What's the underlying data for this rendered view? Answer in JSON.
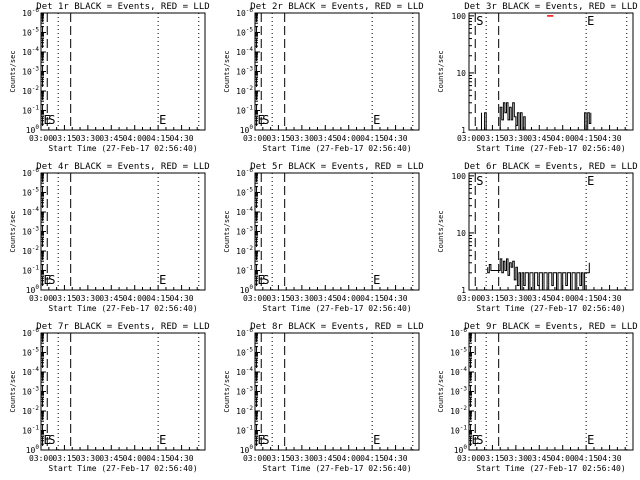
{
  "colors": {
    "events": "#000000",
    "lld": "#ff0000",
    "background": "#ffffff"
  },
  "chart_data": [
    {
      "type": "line",
      "title": "Det 1r BLACK = Events, RED = LLD",
      "xlabel": "Start Time (27-Feb-17 02:56:40)",
      "ylabel": "Counts/sec",
      "xticks": [
        "03:00",
        "03:15",
        "03:30",
        "03:45",
        "04:00",
        "04:15",
        "04:30"
      ],
      "yticks": [
        "10^0",
        "10^-1",
        "10^-2",
        "10^-3",
        "10^-4",
        "10^-5",
        "10^-6"
      ],
      "markers": [
        {
          "label": "E",
          "time": "03:01",
          "style": "dashed"
        },
        {
          "label": "S",
          "time": "03:04",
          "style": "dashed"
        },
        {
          "time": "03:11",
          "style": "dotted"
        },
        {
          "time": "03:19",
          "style": "dashed"
        },
        {
          "label": "E",
          "time": "04:15",
          "style": "dotted"
        },
        {
          "time": "04:41",
          "style": "dotted"
        }
      ],
      "series": []
    },
    {
      "type": "line",
      "title": "Det 2r BLACK = Events, RED = LLD",
      "xlabel": "Start Time (27-Feb-17 02:56:40)",
      "ylabel": "Counts/sec",
      "xticks": [
        "03:00",
        "03:15",
        "03:30",
        "03:45",
        "04:00",
        "04:15",
        "04:30"
      ],
      "yticks": [
        "10^0",
        "10^-1",
        "10^-2",
        "10^-3",
        "10^-4",
        "10^-5",
        "10^-6"
      ],
      "markers": [
        {
          "label": "E",
          "time": "03:01",
          "style": "dashed"
        },
        {
          "label": "S",
          "time": "03:04",
          "style": "dashed"
        },
        {
          "time": "03:11",
          "style": "dotted"
        },
        {
          "time": "03:19",
          "style": "dashed"
        },
        {
          "label": "E",
          "time": "04:15",
          "style": "dotted"
        },
        {
          "time": "04:41",
          "style": "dotted"
        }
      ],
      "series": []
    },
    {
      "type": "line",
      "title": "Det 3r BLACK = Events, RED = LLD",
      "xlabel": "Start Time (27-Feb-17 02:56:40)",
      "ylabel": "Counts/sec",
      "xticks": [
        "03:00",
        "03:15",
        "03:30",
        "03:45",
        "04:00",
        "04:15",
        "04:30"
      ],
      "yticks": [
        "1",
        "10",
        "100"
      ],
      "markers": [
        {
          "label": "S",
          "time": "03:04",
          "style": "dashed"
        },
        {
          "time": "03:11",
          "style": "dotted"
        },
        {
          "time": "03:19",
          "style": "dashed"
        },
        {
          "label": "E",
          "time": "04:15",
          "style": "dotted"
        },
        {
          "time": "04:41",
          "style": "dotted"
        }
      ],
      "series": [
        {
          "color": "black",
          "points": [
            [
              "03:08",
              2
            ],
            [
              "03:08",
              1
            ],
            [
              "03:10",
              1
            ],
            [
              "03:10",
              2
            ],
            [
              "03:11",
              2
            ],
            [
              "03:11",
              1
            ],
            [
              "03:20",
              1
            ],
            [
              "03:20",
              2.5
            ],
            [
              "03:21",
              2.5
            ],
            [
              "03:21",
              1.5
            ],
            [
              "03:22",
              1.5
            ],
            [
              "03:22",
              3
            ],
            [
              "03:23",
              3
            ],
            [
              "03:23",
              2
            ],
            [
              "03:24",
              2
            ],
            [
              "03:24",
              3
            ],
            [
              "03:25",
              3
            ],
            [
              "03:25",
              1.5
            ],
            [
              "03:26",
              1.5
            ],
            [
              "03:26",
              2.5
            ],
            [
              "03:27",
              2.5
            ],
            [
              "03:27",
              1.5
            ],
            [
              "03:28",
              1.5
            ],
            [
              "03:28",
              3
            ],
            [
              "03:29",
              3
            ],
            [
              "03:29",
              1.7
            ],
            [
              "03:30",
              1.7
            ],
            [
              "03:30",
              1.2
            ],
            [
              "03:31",
              1.2
            ],
            [
              "03:31",
              2
            ],
            [
              "03:32",
              2
            ],
            [
              "03:32",
              1
            ],
            [
              "03:33",
              1
            ],
            [
              "03:33",
              2
            ],
            [
              "03:34",
              2
            ],
            [
              "03:34",
              1
            ],
            [
              "03:35",
              1
            ],
            [
              "03:35",
              1.7
            ],
            [
              "03:36",
              1.7
            ],
            [
              "03:36",
              1
            ],
            [
              "04:14",
              1
            ],
            [
              "04:14",
              2
            ],
            [
              "04:15",
              2
            ],
            [
              "04:15",
              1
            ],
            [
              "04:16",
              1
            ],
            [
              "04:16",
              2
            ],
            [
              "04:17",
              2
            ],
            [
              "04:17",
              1.3
            ],
            [
              "04:18",
              1.3
            ],
            [
              "04:18",
              2
            ]
          ]
        },
        {
          "color": "red",
          "points": [
            [
              "03:50",
              100
            ],
            [
              "03:54",
              100
            ]
          ]
        }
      ]
    },
    {
      "type": "line",
      "title": "Det 4r BLACK = Events, RED = LLD",
      "xlabel": "Start Time (27-Feb-17 02:56:40)",
      "ylabel": "Counts/sec",
      "xticks": [
        "03:00",
        "03:15",
        "03:30",
        "03:45",
        "04:00",
        "04:15",
        "04:30"
      ],
      "yticks": [
        "10^0",
        "10^-1",
        "10^-2",
        "10^-3",
        "10^-4",
        "10^-5",
        "10^-6"
      ],
      "markers": [
        {
          "label": "E",
          "time": "03:01",
          "style": "dashed"
        },
        {
          "label": "S",
          "time": "03:04",
          "style": "dashed"
        },
        {
          "time": "03:11",
          "style": "dotted"
        },
        {
          "time": "03:19",
          "style": "dashed"
        },
        {
          "label": "E",
          "time": "04:15",
          "style": "dotted"
        },
        {
          "time": "04:41",
          "style": "dotted"
        }
      ],
      "series": []
    },
    {
      "type": "line",
      "title": "Det 5r BLACK = Events, RED = LLD",
      "xlabel": "Start Time (27-Feb-17 02:56:40)",
      "ylabel": "Counts/sec",
      "xticks": [
        "03:00",
        "03:15",
        "03:30",
        "03:45",
        "04:00",
        "04:15",
        "04:30"
      ],
      "yticks": [
        "10^0",
        "10^-1",
        "10^-2",
        "10^-3",
        "10^-4",
        "10^-5",
        "10^-6"
      ],
      "markers": [
        {
          "label": "E",
          "time": "03:01",
          "style": "dashed"
        },
        {
          "label": "S",
          "time": "03:04",
          "style": "dashed"
        },
        {
          "time": "03:11",
          "style": "dotted"
        },
        {
          "time": "03:19",
          "style": "dashed"
        },
        {
          "label": "E",
          "time": "04:15",
          "style": "dotted"
        },
        {
          "time": "04:41",
          "style": "dotted"
        }
      ],
      "series": []
    },
    {
      "type": "line",
      "title": "Det 6r BLACK = Events, RED = LLD",
      "xlabel": "Start Time (27-Feb-17 02:56:40)",
      "ylabel": "Counts/sec",
      "xticks": [
        "03:00",
        "03:15",
        "03:30",
        "03:45",
        "04:00",
        "04:15",
        "04:30"
      ],
      "yticks": [
        "1",
        "10",
        "100"
      ],
      "markers": [
        {
          "label": "S",
          "time": "03:04",
          "style": "dashed"
        },
        {
          "time": "03:11",
          "style": "dotted"
        },
        {
          "time": "03:19",
          "style": "dashed"
        },
        {
          "label": "E",
          "time": "04:15",
          "style": "dotted"
        },
        {
          "time": "04:41",
          "style": "dotted"
        }
      ],
      "series": [
        {
          "color": "black",
          "points": [
            [
              "03:12",
              2.5
            ],
            [
              "03:12",
              2
            ],
            [
              "03:13",
              2
            ],
            [
              "03:13",
              2.8
            ],
            [
              "03:14",
              2.8
            ],
            [
              "03:14",
              2.2
            ],
            [
              "03:20",
              2.2
            ],
            [
              "03:20",
              3.5
            ],
            [
              "03:21",
              3.5
            ],
            [
              "03:21",
              2
            ],
            [
              "03:22",
              2
            ],
            [
              "03:22",
              3.2
            ],
            [
              "03:23",
              3.2
            ],
            [
              "03:23",
              2.2
            ],
            [
              "03:24",
              2.2
            ],
            [
              "03:24",
              3.5
            ],
            [
              "03:25",
              3.5
            ],
            [
              "03:25",
              1.8
            ],
            [
              "03:26",
              1.8
            ],
            [
              "03:26",
              3
            ],
            [
              "03:27",
              3
            ],
            [
              "03:27",
              2.5
            ],
            [
              "03:28",
              2.5
            ],
            [
              "03:28",
              3.2
            ],
            [
              "03:29",
              3.2
            ],
            [
              "03:29",
              1.5
            ],
            [
              "03:30",
              1.5
            ],
            [
              "03:30",
              2.5
            ],
            [
              "03:31",
              2.5
            ],
            [
              "03:31",
              1.2
            ],
            [
              "03:32",
              1.2
            ],
            [
              "03:32",
              2
            ],
            [
              "03:33",
              2
            ],
            [
              "03:33",
              1
            ],
            [
              "03:34",
              1
            ],
            [
              "03:34",
              2
            ],
            [
              "03:35",
              2
            ],
            [
              "03:35",
              1.2
            ],
            [
              "03:36",
              1.2
            ],
            [
              "03:36",
              2
            ],
            [
              "03:38",
              2
            ],
            [
              "03:38",
              1
            ],
            [
              "03:39",
              1
            ],
            [
              "03:39",
              2
            ],
            [
              "03:41",
              2
            ],
            [
              "03:41",
              1
            ],
            [
              "03:42",
              1
            ],
            [
              "03:42",
              2
            ],
            [
              "03:44",
              2
            ],
            [
              "03:44",
              1.2
            ],
            [
              "03:45",
              1.2
            ],
            [
              "03:45",
              2
            ],
            [
              "03:47",
              2
            ],
            [
              "03:47",
              1
            ],
            [
              "03:48",
              1
            ],
            [
              "03:48",
              2
            ],
            [
              "03:50",
              2
            ],
            [
              "03:50",
              1
            ],
            [
              "03:51",
              1
            ],
            [
              "03:51",
              2
            ],
            [
              "03:53",
              2
            ],
            [
              "03:53",
              1.2
            ],
            [
              "03:54",
              1.2
            ],
            [
              "03:54",
              2
            ],
            [
              "03:56",
              2
            ],
            [
              "03:56",
              1
            ],
            [
              "03:57",
              1
            ],
            [
              "03:57",
              2
            ],
            [
              "03:59",
              2
            ],
            [
              "03:59",
              1
            ],
            [
              "04:00",
              1
            ],
            [
              "04:00",
              2
            ],
            [
              "04:02",
              2
            ],
            [
              "04:02",
              1.2
            ],
            [
              "04:03",
              1.2
            ],
            [
              "04:03",
              2
            ],
            [
              "04:05",
              2
            ],
            [
              "04:05",
              1
            ],
            [
              "04:06",
              1
            ],
            [
              "04:06",
              2
            ],
            [
              "04:08",
              2
            ],
            [
              "04:08",
              1
            ],
            [
              "04:09",
              1
            ],
            [
              "04:09",
              2
            ],
            [
              "04:11",
              2
            ],
            [
              "04:11",
              1.2
            ],
            [
              "04:12",
              1.2
            ],
            [
              "04:12",
              2
            ],
            [
              "04:13",
              2
            ],
            [
              "04:13",
              1
            ],
            [
              "04:14",
              1
            ],
            [
              "04:14",
              2
            ],
            [
              "04:17",
              2
            ],
            [
              "04:17",
              3
            ]
          ]
        }
      ]
    },
    {
      "type": "line",
      "title": "Det 7r BLACK = Events, RED = LLD",
      "xlabel": "Start Time (27-Feb-17 02:56:40)",
      "ylabel": "Counts/sec",
      "xticks": [
        "03:00",
        "03:15",
        "03:30",
        "03:45",
        "04:00",
        "04:15",
        "04:30"
      ],
      "yticks": [
        "10^0",
        "10^-1",
        "10^-2",
        "10^-3",
        "10^-4",
        "10^-5",
        "10^-6"
      ],
      "markers": [
        {
          "label": "E",
          "time": "03:01",
          "style": "dashed"
        },
        {
          "label": "S",
          "time": "03:04",
          "style": "dashed"
        },
        {
          "time": "03:11",
          "style": "dotted"
        },
        {
          "time": "03:19",
          "style": "dashed"
        },
        {
          "label": "E",
          "time": "04:15",
          "style": "dotted"
        },
        {
          "time": "04:41",
          "style": "dotted"
        }
      ],
      "series": []
    },
    {
      "type": "line",
      "title": "Det 8r BLACK = Events, RED = LLD",
      "xlabel": "Start Time (27-Feb-17 02:56:40)",
      "ylabel": "Counts/sec",
      "xticks": [
        "03:00",
        "03:15",
        "03:30",
        "03:45",
        "04:00",
        "04:15",
        "04:30"
      ],
      "yticks": [
        "10^0",
        "10^-1",
        "10^-2",
        "10^-3",
        "10^-4",
        "10^-5",
        "10^-6"
      ],
      "markers": [
        {
          "label": "E",
          "time": "03:01",
          "style": "dashed"
        },
        {
          "label": "S",
          "time": "03:04",
          "style": "dashed"
        },
        {
          "time": "03:11",
          "style": "dotted"
        },
        {
          "time": "03:19",
          "style": "dashed"
        },
        {
          "label": "E",
          "time": "04:15",
          "style": "dotted"
        },
        {
          "time": "04:41",
          "style": "dotted"
        }
      ],
      "series": []
    },
    {
      "type": "line",
      "title": "Det 9r BLACK = Events, RED = LLD",
      "xlabel": "Start Time (27-Feb-17 02:56:40)",
      "ylabel": "Counts/sec",
      "xticks": [
        "03:00",
        "03:15",
        "03:30",
        "03:45",
        "04:00",
        "04:15",
        "04:30"
      ],
      "yticks": [
        "10^0",
        "10^-1",
        "10^-2",
        "10^-3",
        "10^-4",
        "10^-5",
        "10^-6"
      ],
      "markers": [
        {
          "label": "E",
          "time": "03:01",
          "style": "dashed"
        },
        {
          "label": "S",
          "time": "03:04",
          "style": "dashed"
        },
        {
          "time": "03:11",
          "style": "dotted"
        },
        {
          "time": "03:19",
          "style": "dashed"
        },
        {
          "label": "E",
          "time": "04:15",
          "style": "dotted"
        },
        {
          "time": "04:41",
          "style": "dotted"
        }
      ],
      "series": []
    }
  ]
}
